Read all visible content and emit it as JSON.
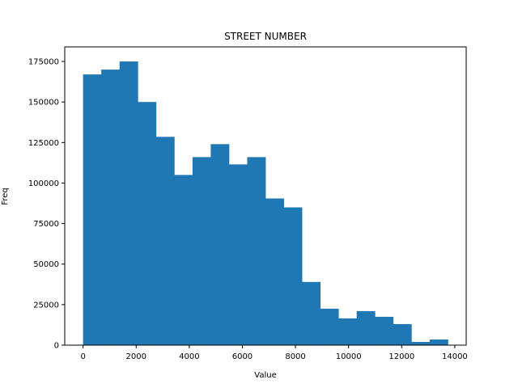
{
  "chart_data": {
    "type": "bar",
    "title": "STREET NUMBER",
    "xlabel": "Value",
    "ylabel": "Freq",
    "bin_start": 0,
    "bin_width": 687,
    "values": [
      167000,
      170000,
      175000,
      150000,
      128500,
      105000,
      116000,
      124000,
      111500,
      116000,
      90500,
      85000,
      39000,
      22500,
      16500,
      21000,
      17500,
      13000,
      2000,
      3500
    ],
    "xlim": [
      -690,
      14430
    ],
    "ylim": [
      0,
      184000
    ],
    "xticks": [
      0,
      2000,
      4000,
      6000,
      8000,
      10000,
      12000,
      14000
    ],
    "yticks": [
      0,
      25000,
      50000,
      75000,
      100000,
      125000,
      150000,
      175000
    ],
    "bar_color": "#1f77b4",
    "grid": false,
    "legend": "none"
  }
}
